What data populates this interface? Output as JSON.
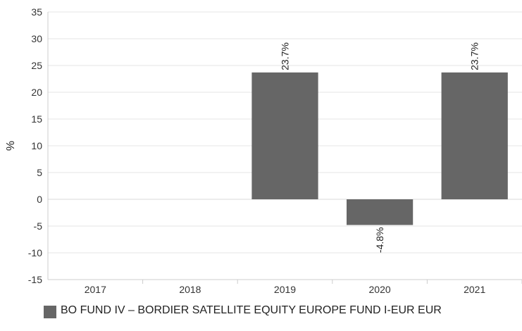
{
  "chart_data": {
    "type": "bar",
    "categories": [
      "2017",
      "2018",
      "2019",
      "2020",
      "2021"
    ],
    "series": [
      {
        "name": "BO FUND IV – BORDIER SATELLITE EQUITY EUROPE FUND I-EUR EUR",
        "values": [
          null,
          null,
          23.7,
          -4.8,
          23.7
        ],
        "labels": [
          "",
          "",
          "23.7%",
          "-4.8%",
          "23.7%"
        ],
        "color": "#666666"
      }
    ],
    "ylabel": "%",
    "ylim": [
      -15,
      35
    ],
    "yticks": [
      "35",
      "30",
      "25",
      "20",
      "15",
      "10",
      "5",
      "0",
      "-5",
      "-10",
      "-15"
    ],
    "grid": true,
    "legend_position": "bottom-left"
  }
}
